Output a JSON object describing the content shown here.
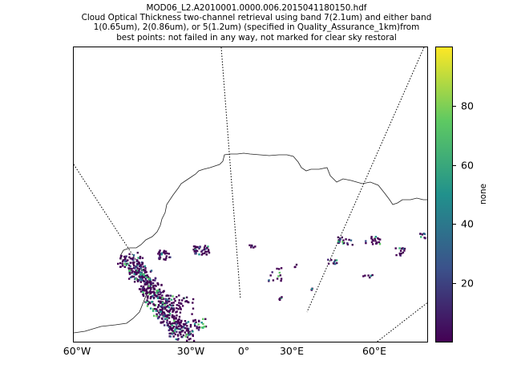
{
  "title_lines": [
    "MOD06_L2.A2010001.0000.006.2015041180150.hdf",
    "Cloud Optical Thickness two-channel retrieval using band 7(2.1um) and either band",
    "1(0.65um), 2(0.86um), or 5(1.2um)  (specified in Quality_Assurance_1km)from",
    "best points: not failed in any way, not marked for clear sky restoral"
  ],
  "x_ticks": [
    "60°W",
    "30°W",
    "0°",
    "30°E",
    "60°E"
  ],
  "colorbar": {
    "label": "none",
    "ticks": [
      "20",
      "40",
      "60",
      "80"
    ],
    "tick_values": [
      20,
      40,
      60,
      80
    ],
    "range": [
      0,
      100
    ],
    "colormap": "viridis",
    "colors": [
      "#440154",
      "#3b528b",
      "#21918c",
      "#5ec962",
      "#fde725"
    ]
  },
  "map": {
    "projection": "cylindrical",
    "lon_range": [
      -60,
      80
    ],
    "coastline_color": "#000000",
    "swath_edge_style": "dotted"
  }
}
